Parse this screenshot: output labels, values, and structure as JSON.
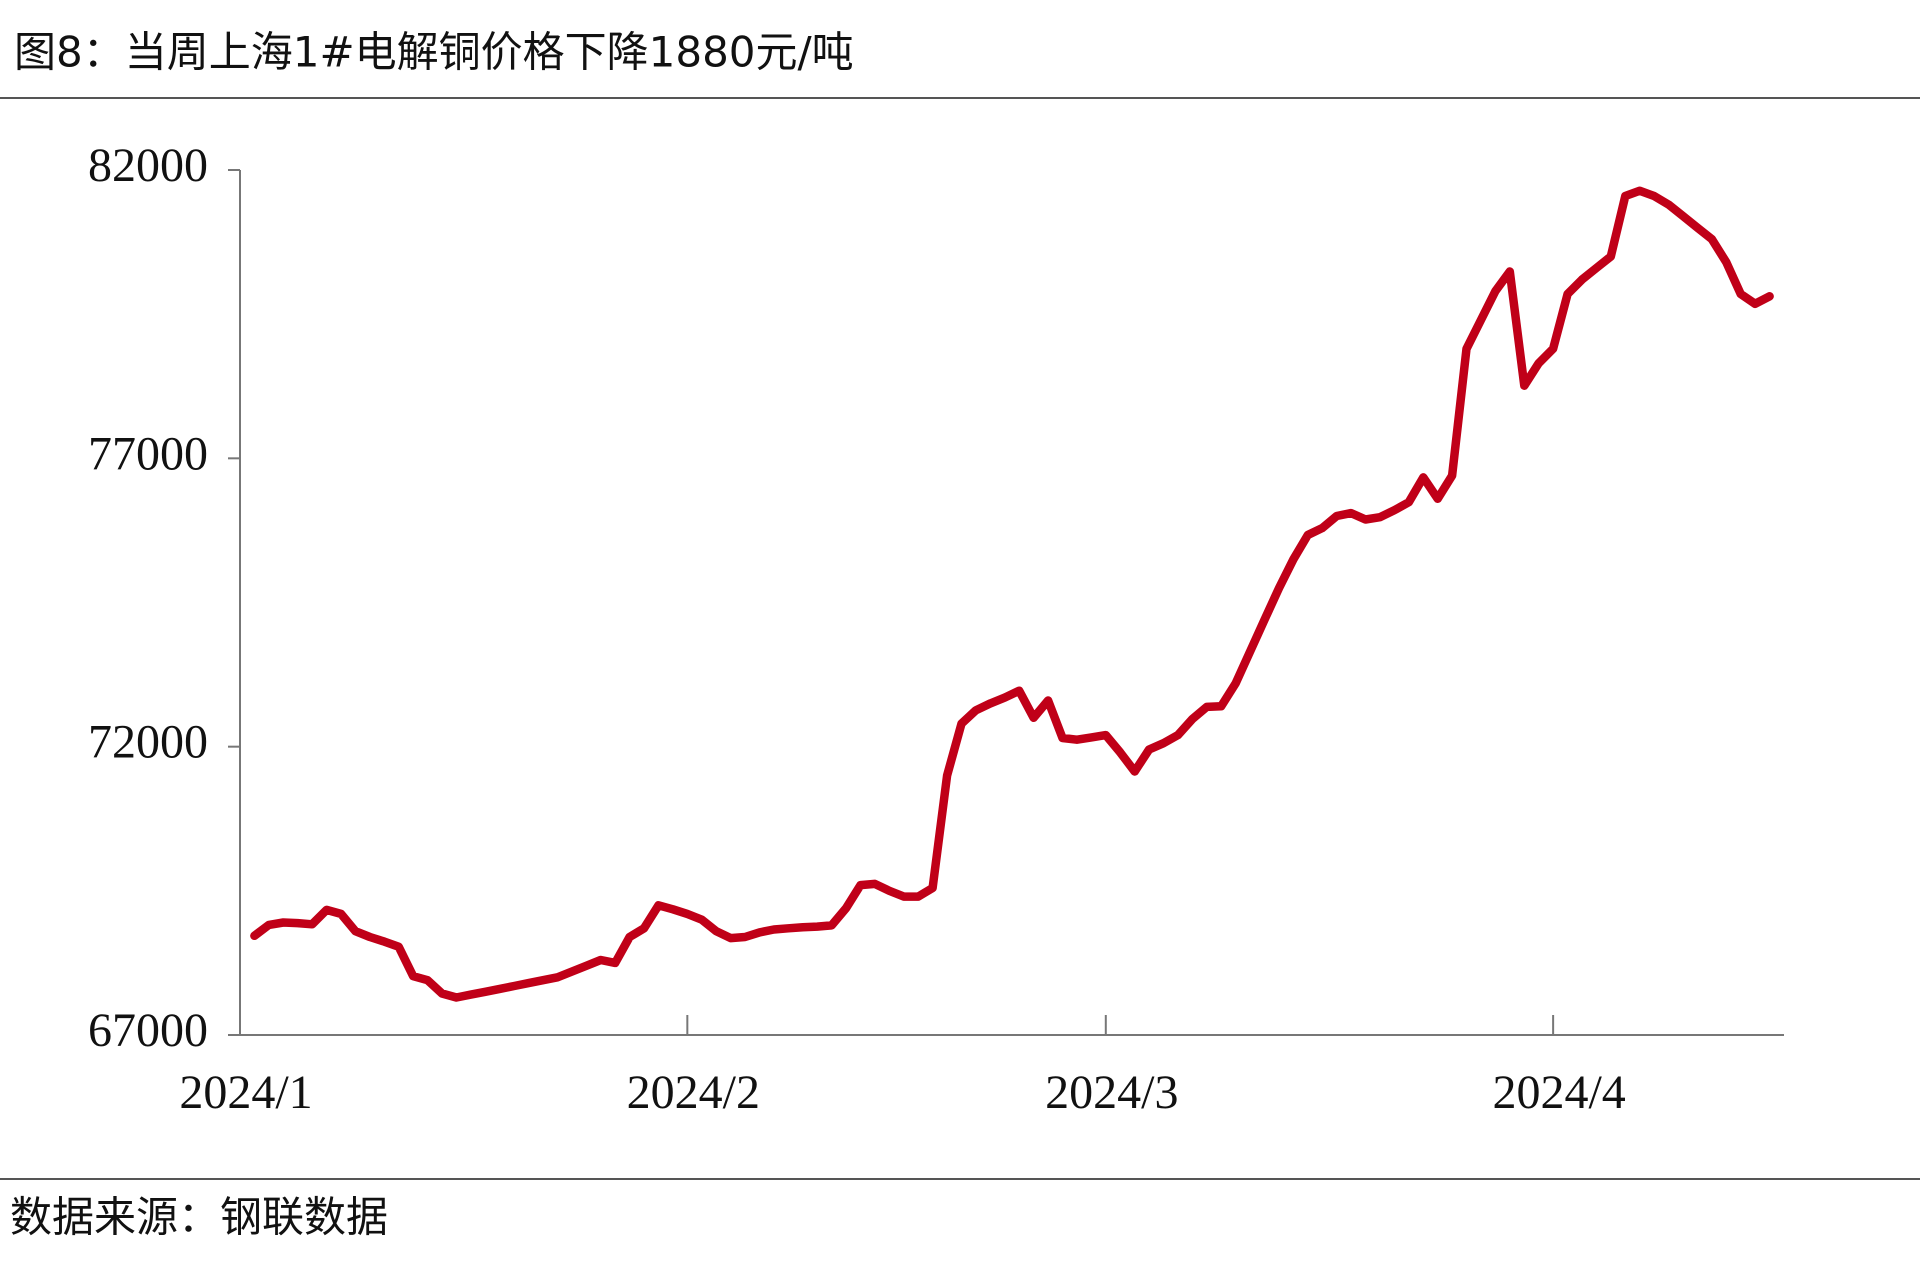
{
  "chart_data": {
    "type": "line",
    "title": "图8：当周上海1#电解铜价格下降1880元/吨",
    "source": "数据来源：钢联数据",
    "categories": [
      "2024/1",
      null,
      null,
      null,
      null,
      null,
      null,
      null,
      null,
      null,
      null,
      null,
      null,
      null,
      null,
      null,
      null,
      null,
      null,
      null,
      null,
      null,
      null,
      null,
      null,
      null,
      null,
      null,
      null,
      null,
      null,
      "2024/2",
      null,
      null,
      null,
      null,
      null,
      null,
      null,
      null,
      null,
      null,
      null,
      null,
      null,
      null,
      null,
      null,
      null,
      null,
      null,
      null,
      null,
      null,
      null,
      null,
      null,
      null,
      null,
      null,
      "2024/3",
      null,
      null,
      null,
      null,
      null,
      null,
      null,
      null,
      null,
      null,
      null,
      null,
      null,
      null,
      null,
      null,
      null,
      null,
      null,
      null,
      null,
      null,
      null,
      null,
      null,
      null,
      null,
      null,
      null,
      null,
      "2024/4",
      null,
      null,
      null,
      null,
      null,
      null,
      null,
      null,
      null,
      null,
      null,
      null,
      null,
      null,
      null
    ],
    "series": [
      {
        "color": "#c00018",
        "values": [
          null,
          68720,
          68910,
          68950,
          68940,
          68920,
          69170,
          69100,
          68800,
          68700,
          68620,
          68530,
          68020,
          67950,
          67720,
          67650,
          67700,
          67750,
          67800,
          67850,
          67900,
          67950,
          68000,
          68100,
          68200,
          68300,
          68250,
          68700,
          68850,
          69250,
          69180,
          69100,
          69000,
          68800,
          68680,
          68700,
          68780,
          68830,
          68850,
          68870,
          68880,
          68900,
          69200,
          69600,
          69620,
          69500,
          69400,
          69400,
          69550,
          71500,
          72400,
          72630,
          72750,
          72850,
          72970,
          72500,
          72800,
          72150,
          72120,
          72160,
          72200,
          71900,
          71570,
          71950,
          72060,
          72200,
          72480,
          72690,
          72700,
          73100,
          73650,
          74200,
          74750,
          75250,
          75670,
          75790,
          76000,
          76050,
          75940,
          75980,
          76100,
          76240,
          76670,
          76300,
          76700,
          78900,
          79400,
          79900,
          80240,
          78260,
          78650,
          78900,
          79850,
          80100,
          80300,
          80500,
          81550,
          81640,
          81550,
          81400,
          81200,
          81000,
          80800,
          80400,
          79850,
          79680,
          79810
        ]
      }
    ],
    "ylim": [
      67000,
      82000
    ],
    "yticks": [
      67000,
      72000,
      77000,
      82000
    ]
  }
}
